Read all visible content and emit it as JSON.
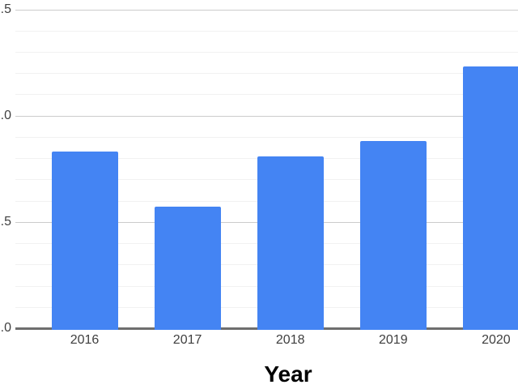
{
  "chart_data": {
    "type": "bar",
    "title": "",
    "xlabel": "Year",
    "ylabel": "",
    "categories": [
      "2016",
      "2017",
      "2018",
      "2019",
      "2020"
    ],
    "values": [
      0.83,
      0.57,
      0.81,
      0.88,
      1.23
    ],
    "ylim": [
      0,
      1.5
    ],
    "y_major_step": 0.5,
    "y_minor_step": 0.1,
    "y_tick_labels_visible": [
      {
        "value": 1.5,
        "label": ".5"
      },
      {
        "value": 1.0,
        "label": ".0"
      },
      {
        "value": 0.5,
        "label": ".5"
      },
      {
        "value": 0.0,
        "label": ".0"
      }
    ],
    "grid": true,
    "legend_position": "none",
    "notes": "y-axis tick labels are cropped at the left image edge; only the decimal part of each label is visible; the 2020 bar is cropped at the right image edge",
    "colors": {
      "bar": "#4484f3",
      "gridline_major": "#cccccc",
      "gridline_minor": "#f1f1f1",
      "axis_line": "#6e6e6e",
      "tick_label": "#3f3f3f",
      "axis_title": "#000000",
      "background": "#ffffff"
    }
  }
}
